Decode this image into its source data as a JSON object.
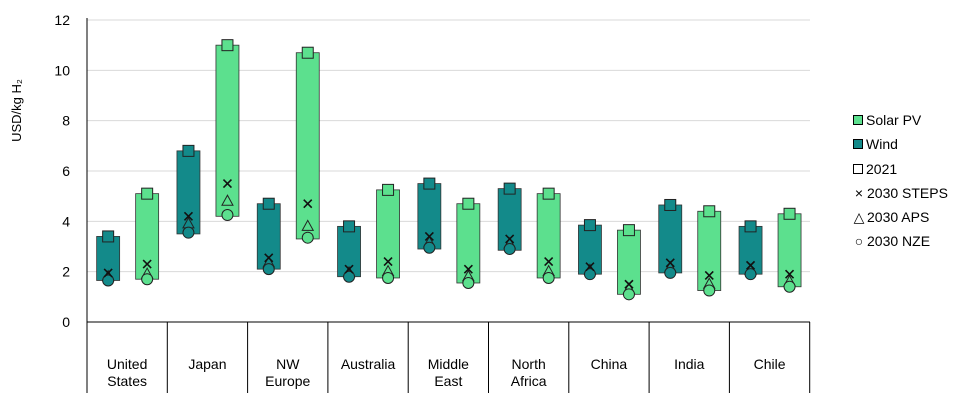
{
  "chart_data": {
    "type": "range-bar",
    "ylabel": "USD/kg H₂",
    "ylim": [
      0,
      12
    ],
    "yticks": [
      0,
      2,
      4,
      6,
      8,
      10,
      12
    ],
    "categories": [
      "United States",
      "Japan",
      "NW Europe",
      "Australia",
      "Middle East",
      "North Africa",
      "China",
      "India",
      "Chile"
    ],
    "category_lines": [
      [
        "United",
        "States"
      ],
      [
        "Japan"
      ],
      [
        "NW",
        "Europe"
      ],
      [
        "Australia"
      ],
      [
        "Middle",
        "East"
      ],
      [
        "North",
        "Africa"
      ],
      [
        "China"
      ],
      [
        "India"
      ],
      [
        "Chile"
      ]
    ],
    "series": [
      {
        "name": "Wind",
        "color": "#138a8a",
        "bar_low": [
          1.65,
          3.5,
          2.1,
          1.8,
          2.9,
          2.85,
          1.9,
          1.95,
          1.9
        ],
        "bar_high": [
          3.4,
          6.8,
          4.7,
          3.8,
          5.5,
          5.3,
          3.85,
          4.65,
          3.8
        ],
        "y2021": [
          3.4,
          6.8,
          4.7,
          3.8,
          5.5,
          5.3,
          3.85,
          4.65,
          3.8
        ],
        "steps2030": [
          1.95,
          4.2,
          2.55,
          2.1,
          3.4,
          3.3,
          2.2,
          2.35,
          2.25
        ],
        "aps2030": [
          1.8,
          3.9,
          2.35,
          1.95,
          3.15,
          3.1,
          2.05,
          2.15,
          2.05
        ],
        "nze2030": [
          1.65,
          3.55,
          2.1,
          1.8,
          2.95,
          2.9,
          1.9,
          1.95,
          1.9
        ]
      },
      {
        "name": "Solar PV",
        "color": "#5ce08e",
        "bar_low": [
          1.7,
          4.2,
          3.3,
          1.75,
          1.55,
          1.75,
          1.1,
          1.25,
          1.4
        ],
        "bar_high": [
          5.1,
          11.0,
          10.7,
          5.25,
          4.7,
          5.1,
          3.65,
          4.4,
          4.3
        ],
        "y2021": [
          5.1,
          11.0,
          10.7,
          5.25,
          4.7,
          5.1,
          3.65,
          4.4,
          4.3
        ],
        "steps2030": [
          2.3,
          5.5,
          4.7,
          2.4,
          2.1,
          2.4,
          1.5,
          1.85,
          1.9
        ],
        "aps2030": [
          1.9,
          4.8,
          3.8,
          2.0,
          1.8,
          2.0,
          1.3,
          1.5,
          1.6
        ],
        "nze2030": [
          1.7,
          4.25,
          3.35,
          1.75,
          1.55,
          1.75,
          1.1,
          1.25,
          1.4
        ]
      }
    ],
    "legend": {
      "position": "right",
      "items": [
        {
          "label": "Solar PV",
          "kind": "swatch",
          "color": "#5ce08e"
        },
        {
          "label": "Wind",
          "kind": "swatch",
          "color": "#138a8a"
        },
        {
          "label": "2021",
          "kind": "square"
        },
        {
          "label": "2030 STEPS",
          "kind": "cross"
        },
        {
          "label": "2030 APS",
          "kind": "triangle"
        },
        {
          "label": "2030 NZE",
          "kind": "circle"
        }
      ]
    },
    "grid": true
  }
}
